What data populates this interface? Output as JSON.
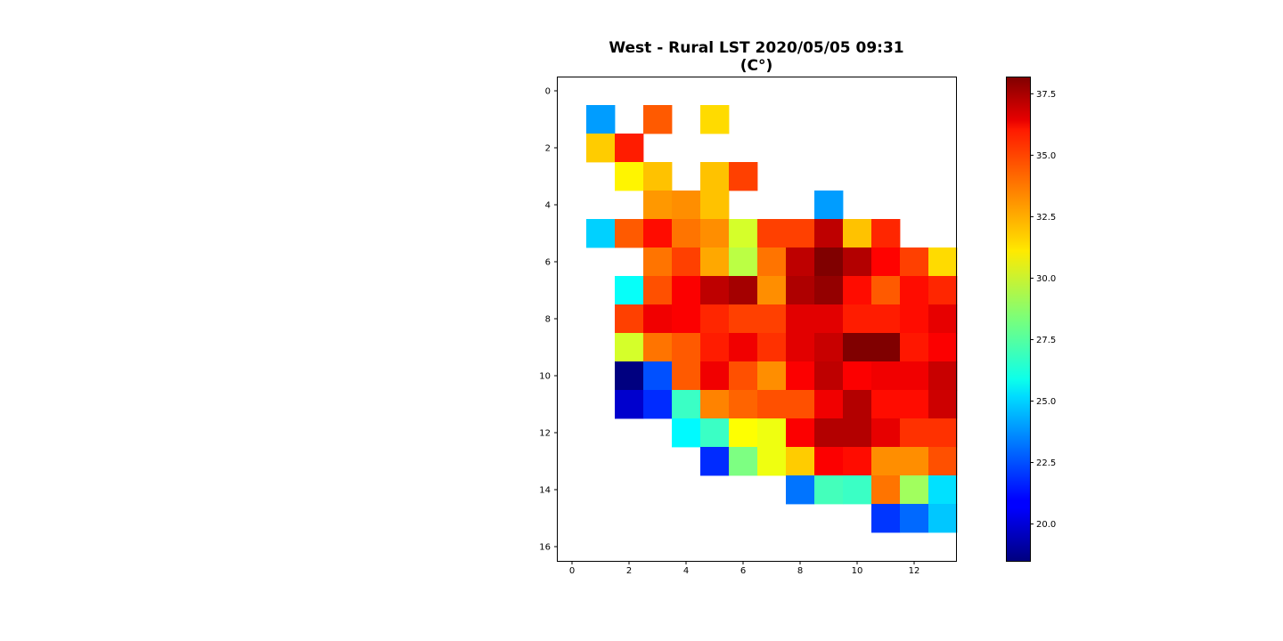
{
  "chart_data": {
    "type": "heatmap",
    "title": "West - Rural LST 2020/05/05 09:31",
    "subtitle": "(C°)",
    "xlabel": "",
    "ylabel": "",
    "x_ticks": [
      "0",
      "2",
      "4",
      "6",
      "8",
      "10",
      "12"
    ],
    "y_ticks": [
      "0",
      "2",
      "4",
      "6",
      "8",
      "10",
      "12",
      "14",
      "16"
    ],
    "x_range": [
      -0.5,
      13.5
    ],
    "y_range": [
      16.5,
      -0.5
    ],
    "colormap": "jet",
    "colorbar": {
      "vmin": 18.5,
      "vmax": 38.2,
      "ticks": [
        "20.0",
        "22.5",
        "25.0",
        "27.5",
        "30.0",
        "32.5",
        "35.0",
        "37.5"
      ]
    },
    "grid": false,
    "values": [
      [
        null,
        null,
        null,
        null,
        null,
        null,
        null,
        null,
        null,
        null,
        null,
        null,
        null,
        null
      ],
      [
        null,
        24.0,
        null,
        34.0,
        null,
        31.5,
        null,
        null,
        null,
        null,
        null,
        null,
        null,
        null
      ],
      [
        null,
        31.8,
        35.2,
        null,
        null,
        null,
        null,
        null,
        null,
        null,
        null,
        null,
        null,
        null
      ],
      [
        null,
        null,
        31.0,
        32.0,
        null,
        32.0,
        34.5,
        null,
        null,
        null,
        null,
        null,
        null,
        null
      ],
      [
        null,
        null,
        null,
        32.8,
        33.0,
        32.0,
        null,
        null,
        null,
        24.0,
        null,
        null,
        null,
        null
      ],
      [
        null,
        25.0,
        34.0,
        35.5,
        33.5,
        33.0,
        30.0,
        34.5,
        34.5,
        37.0,
        32.0,
        35.0,
        null,
        null
      ],
      [
        null,
        null,
        null,
        33.5,
        34.5,
        32.5,
        29.5,
        33.5,
        37.0,
        38.2,
        37.2,
        35.7,
        34.5,
        31.5
      ],
      [
        null,
        null,
        26.0,
        34.2,
        35.8,
        37.0,
        37.5,
        33.0,
        37.3,
        37.8,
        35.5,
        34.0,
        35.5,
        35.0
      ],
      [
        null,
        null,
        34.5,
        36.0,
        35.8,
        35.0,
        34.5,
        34.5,
        36.3,
        36.3,
        35.2,
        35.2,
        35.5,
        36.2
      ],
      [
        null,
        null,
        30.0,
        33.5,
        34.0,
        35.2,
        36.0,
        34.8,
        36.3,
        36.8,
        38.2,
        38.2,
        35.3,
        35.8
      ],
      [
        null,
        null,
        18.5,
        22.5,
        34.0,
        36.0,
        34.2,
        33.0,
        35.8,
        37.0,
        35.8,
        36.0,
        36.0,
        36.8
      ],
      [
        null,
        null,
        20.0,
        21.8,
        27.0,
        33.2,
        33.8,
        34.2,
        34.2,
        36.0,
        37.2,
        35.5,
        35.5,
        36.7
      ],
      [
        null,
        null,
        null,
        null,
        25.8,
        27.0,
        30.8,
        30.5,
        35.8,
        37.2,
        37.2,
        36.2,
        34.8,
        34.8
      ],
      [
        null,
        null,
        null,
        null,
        null,
        21.8,
        28.3,
        30.5,
        31.8,
        35.8,
        35.5,
        33.0,
        33.0,
        34.2
      ],
      [
        null,
        null,
        null,
        null,
        null,
        null,
        null,
        null,
        23.2,
        27.2,
        27.0,
        33.5,
        29.0,
        25.3
      ],
      [
        null,
        null,
        null,
        null,
        null,
        null,
        null,
        null,
        null,
        null,
        null,
        22.0,
        23.0,
        24.8
      ],
      [
        null,
        null,
        null,
        null,
        null,
        null,
        null,
        null,
        null,
        null,
        null,
        null,
        null,
        null
      ]
    ]
  }
}
